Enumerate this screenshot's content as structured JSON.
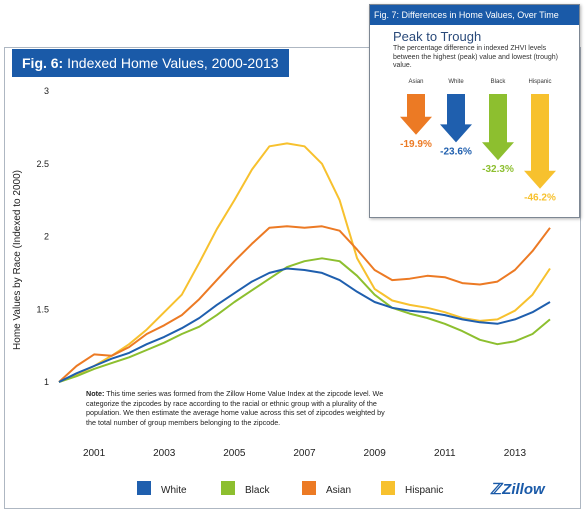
{
  "fig6": {
    "title_prefix": "Fig. 6:",
    "title_rest": " Indexed Home Values, 2000-2013",
    "note_label": "Note:",
    "note_text": " This time series was formed from the Zillow Home Value Index at the zipcode level. We categorize the zipcodes by race according to the racial or ethnic group with a plurality of the population. We then estimate the average home value across this set of zipcodes weighted by the total number of group members belonging to the zipcode."
  },
  "logo_text": "Zillow",
  "chart_data": [
    {
      "type": "line",
      "ylabel": "Home Values by Race (Indexed to 2000)",
      "xlabel": "",
      "ylim": [
        1,
        3
      ],
      "yticks": [
        "1",
        "1.5",
        "2",
        "2.5",
        "3"
      ],
      "xticks": [
        "2001",
        "2003",
        "2005",
        "2007",
        "2009",
        "2011",
        "2013"
      ],
      "xtick_years": [
        2001,
        2003,
        2005,
        2007,
        2009,
        2011,
        2013
      ],
      "xlim": [
        2000.0,
        2014.0
      ],
      "legend_position": "bottom",
      "x": [
        2000.0,
        2000.5,
        2001.0,
        2001.5,
        2002.0,
        2002.5,
        2003.0,
        2003.5,
        2004.0,
        2004.5,
        2005.0,
        2005.5,
        2006.0,
        2006.5,
        2007.0,
        2007.5,
        2008.0,
        2008.5,
        2009.0,
        2009.5,
        2010.0,
        2010.5,
        2011.0,
        2011.5,
        2012.0,
        2012.5,
        2013.0,
        2013.5,
        2014.0
      ],
      "series": [
        {
          "name": "White",
          "color": "#1f5fae",
          "values": [
            1.0,
            1.06,
            1.11,
            1.16,
            1.2,
            1.26,
            1.31,
            1.37,
            1.44,
            1.53,
            1.61,
            1.69,
            1.75,
            1.78,
            1.77,
            1.75,
            1.7,
            1.62,
            1.55,
            1.51,
            1.49,
            1.48,
            1.46,
            1.43,
            1.41,
            1.4,
            1.43,
            1.48,
            1.55
          ]
        },
        {
          "name": "Black",
          "color": "#8dbf2f",
          "values": [
            1.0,
            1.04,
            1.09,
            1.13,
            1.17,
            1.22,
            1.27,
            1.33,
            1.38,
            1.46,
            1.55,
            1.63,
            1.71,
            1.79,
            1.83,
            1.85,
            1.83,
            1.73,
            1.6,
            1.51,
            1.47,
            1.44,
            1.4,
            1.35,
            1.29,
            1.26,
            1.28,
            1.33,
            1.43
          ]
        },
        {
          "name": "Asian",
          "color": "#ec7a24",
          "values": [
            1.0,
            1.11,
            1.19,
            1.18,
            1.24,
            1.33,
            1.39,
            1.46,
            1.57,
            1.7,
            1.83,
            1.95,
            2.06,
            2.07,
            2.06,
            2.07,
            2.04,
            1.91,
            1.77,
            1.7,
            1.71,
            1.73,
            1.72,
            1.68,
            1.67,
            1.69,
            1.77,
            1.9,
            2.06
          ]
        },
        {
          "name": "Hispanic",
          "color": "#f7c12e",
          "values": [
            1.0,
            1.05,
            1.11,
            1.18,
            1.26,
            1.36,
            1.48,
            1.6,
            1.82,
            2.05,
            2.25,
            2.46,
            2.62,
            2.64,
            2.62,
            2.5,
            2.25,
            1.85,
            1.64,
            1.56,
            1.53,
            1.51,
            1.48,
            1.44,
            1.42,
            1.43,
            1.49,
            1.6,
            1.78
          ]
        }
      ]
    },
    {
      "type": "bar",
      "title": "Fig. 7: Differences in Home Values, Over Time",
      "subtitle": "Peak to Trough",
      "description": "The percentage difference in indexed ZHVI levels between the highest (peak) value and lowest (trough) value.",
      "categories": [
        "Asian",
        "White",
        "Black",
        "Hispanic"
      ],
      "values": [
        -19.9,
        -23.6,
        -32.3,
        -46.2
      ],
      "labels": [
        "-19.9%",
        "-23.6%",
        "-32.3%",
        "-46.2%"
      ],
      "colors": [
        "#ec7a24",
        "#1f5fae",
        "#8dbf2f",
        "#f7c12e"
      ]
    }
  ]
}
